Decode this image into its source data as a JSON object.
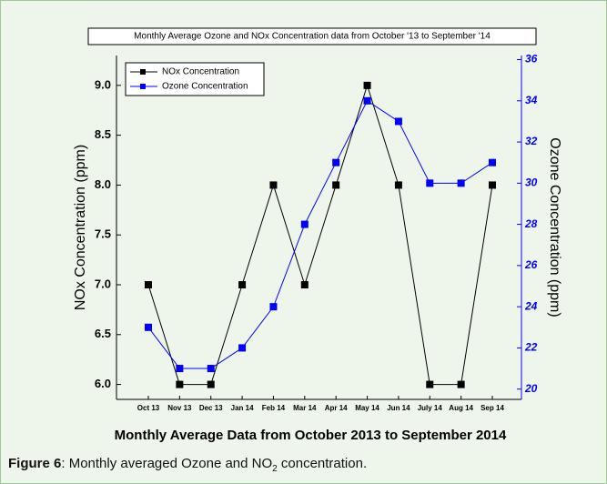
{
  "chart_data": {
    "type": "line",
    "title": "Monthly Average Ozone and NOx Concentration data from October '13 to September '14",
    "x_label": "Monthly Average Data from October 2013 to September 2014",
    "y_label": "NOx Concentration (ppm)",
    "y2_label": "Ozone Concentration (ppm)",
    "categories": [
      "Oct 13",
      "Nov 13",
      "Dec 13",
      "Jan 14",
      "Feb 14",
      "Mar 14",
      "Apr 14",
      "May 14",
      "Jun 14",
      "July 14",
      "Aug 14",
      "Sep 14"
    ],
    "series": [
      {
        "name": "NOx Concentration",
        "color": "#000000",
        "values": [
          7,
          6,
          6,
          7,
          8,
          7,
          8,
          9,
          8,
          6,
          6,
          8
        ]
      },
      {
        "name": "Ozone Concentration",
        "color": "#0000ff",
        "axis": "y2",
        "values": [
          23,
          21,
          21,
          22,
          24,
          28,
          31,
          34,
          33,
          30,
          30,
          31
        ]
      }
    ],
    "ylim": [
      5.85,
      9.3
    ],
    "yticks": [
      {
        "value": 6,
        "label": "6.0"
      },
      6.5,
      {
        "value": 7,
        "label": "7.0"
      },
      7.5,
      {
        "value": 8,
        "label": "8.0"
      },
      8.5,
      {
        "value": 9,
        "label": "9.0"
      }
    ],
    "y2lim": [
      19.5,
      36.2
    ],
    "y2ticks": [
      20,
      22,
      24,
      26,
      28,
      30,
      32,
      34,
      36
    ],
    "grid": false,
    "legend": "top-left"
  },
  "caption": {
    "label": "Figure 6",
    "text": ": Monthly averaged Ozone and NO",
    "subscript": "2",
    "tail": " concentration."
  }
}
